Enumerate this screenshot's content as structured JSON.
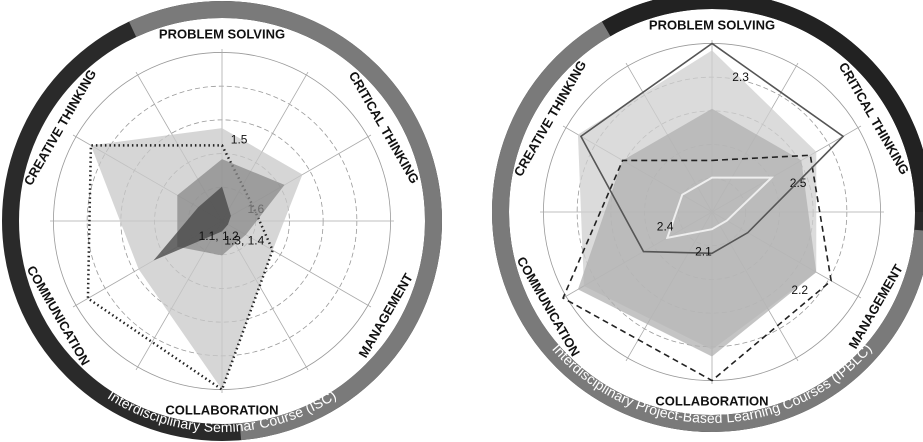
{
  "chart_data": [
    {
      "type": "radar",
      "title": "Interdisciplinary Seminar Course (ISC)",
      "categories": [
        "PROBLEM SOLVING",
        "CRITICAL THINKING",
        "MANAGEMENT",
        "COLLABORATION",
        "COMMUNICATION",
        "CREATIVE THINKING"
      ],
      "rlim": [
        0,
        5
      ],
      "series": [
        {
          "name": "1.5",
          "color": "#c8c8c8",
          "line_style": "none",
          "values": [
            2.7,
            2.7,
            1.7,
            4.9,
            2.8,
            4.4
          ]
        },
        {
          "name": "1.6",
          "color": "#222222",
          "line_style": "dotted",
          "values": [
            2.2,
            1.0,
            1.7,
            4.9,
            4.5,
            4.4
          ]
        },
        {
          "name": "1.3, 1.4",
          "color": "#8a8a8a",
          "line_style": "none",
          "values": [
            1.8,
            2.1,
            0.8,
            1.0,
            1.5,
            1.5
          ]
        },
        {
          "name": "1.1, 1.2",
          "color": "#444444",
          "line_style": "none",
          "values": [
            1.0,
            0.3,
            0.2,
            0.3,
            2.3,
            0.8
          ]
        }
      ]
    },
    {
      "type": "radar",
      "title": "Interdisciplinary Project-Based Learning Courses (IPBLC)",
      "categories": [
        "PROBLEM SOLVING",
        "CRITICAL THINKING",
        "MANAGEMENT",
        "COLLABORATION",
        "COMMUNICATION",
        "CREATIVE THINKING"
      ],
      "rlim": [
        0,
        5
      ],
      "series": [
        {
          "name": "2.3",
          "color": "#cfcfcf",
          "line_style": "none",
          "values": [
            4.7,
            3.5,
            3.5,
            4.0,
            4.3,
            4.5
          ]
        },
        {
          "name": "2.5",
          "color": "#b0b0b0",
          "line_style": "none",
          "values": [
            3.0,
            3.0,
            3.5,
            4.2,
            4.5,
            3.0
          ]
        },
        {
          "name": "2.2",
          "color": "#222222",
          "line_style": "dashed",
          "values": [
            1.5,
            3.3,
            4.0,
            4.9,
            5.0,
            3.0
          ]
        },
        {
          "name": "2.1",
          "color": "#555555",
          "line_style": "solid",
          "values": [
            4.9,
            4.4,
            1.2,
            1.2,
            2.3,
            4.4
          ]
        },
        {
          "name": "2.4",
          "color": "#eeeeee",
          "line_style": "line",
          "values": [
            1.0,
            2.0,
            0.5,
            0.5,
            1.5,
            1.0
          ]
        }
      ]
    }
  ]
}
